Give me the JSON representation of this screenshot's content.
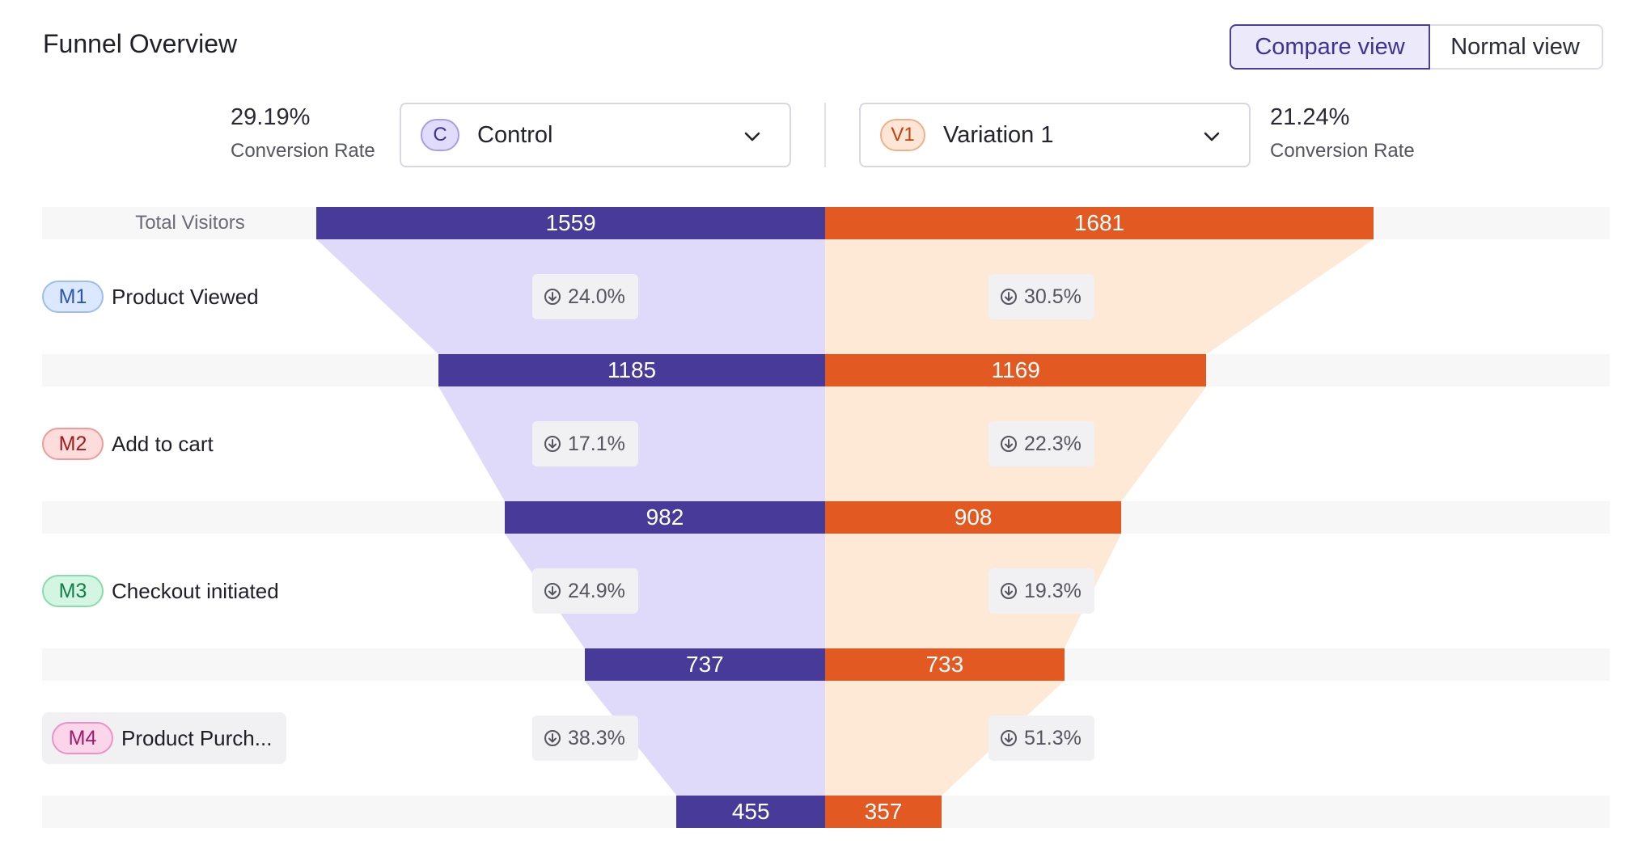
{
  "header": {
    "title": "Funnel Overview"
  },
  "view_toggle": {
    "compare_label": "Compare view",
    "normal_label": "Normal view",
    "active": "Compare view"
  },
  "control": {
    "rate": "29.19%",
    "rate_label": "Conversion Rate",
    "badge": "C",
    "name": "Control",
    "color": "#473a98",
    "fill": "#e0dafa"
  },
  "variation": {
    "rate": "21.24%",
    "rate_label": "Conversion Rate",
    "badge": "V1",
    "name": "Variation 1",
    "color": "#e25a22",
    "fill": "#fde9d6"
  },
  "icons": {
    "dropdown": "chevron-down-icon",
    "drop": "arrow-down-circle-icon"
  },
  "chart_data": {
    "type": "funnel",
    "top_label": "Total Visitors",
    "steps": [
      {
        "badge": "M1",
        "label": "Product Viewed"
      },
      {
        "badge": "M2",
        "label": "Add to cart"
      },
      {
        "badge": "M3",
        "label": "Checkout initiated"
      },
      {
        "badge": "M4",
        "label": "Product Purch..."
      }
    ],
    "series": [
      {
        "name": "Control",
        "values": [
          1559,
          1185,
          982,
          737,
          455
        ],
        "drops": [
          "24.0%",
          "17.1%",
          "24.9%",
          "38.3%"
        ]
      },
      {
        "name": "Variation 1",
        "values": [
          1681,
          1169,
          908,
          733,
          357
        ],
        "drops": [
          "30.5%",
          "22.3%",
          "19.3%",
          "51.3%"
        ]
      }
    ],
    "scale_max": 1681
  }
}
